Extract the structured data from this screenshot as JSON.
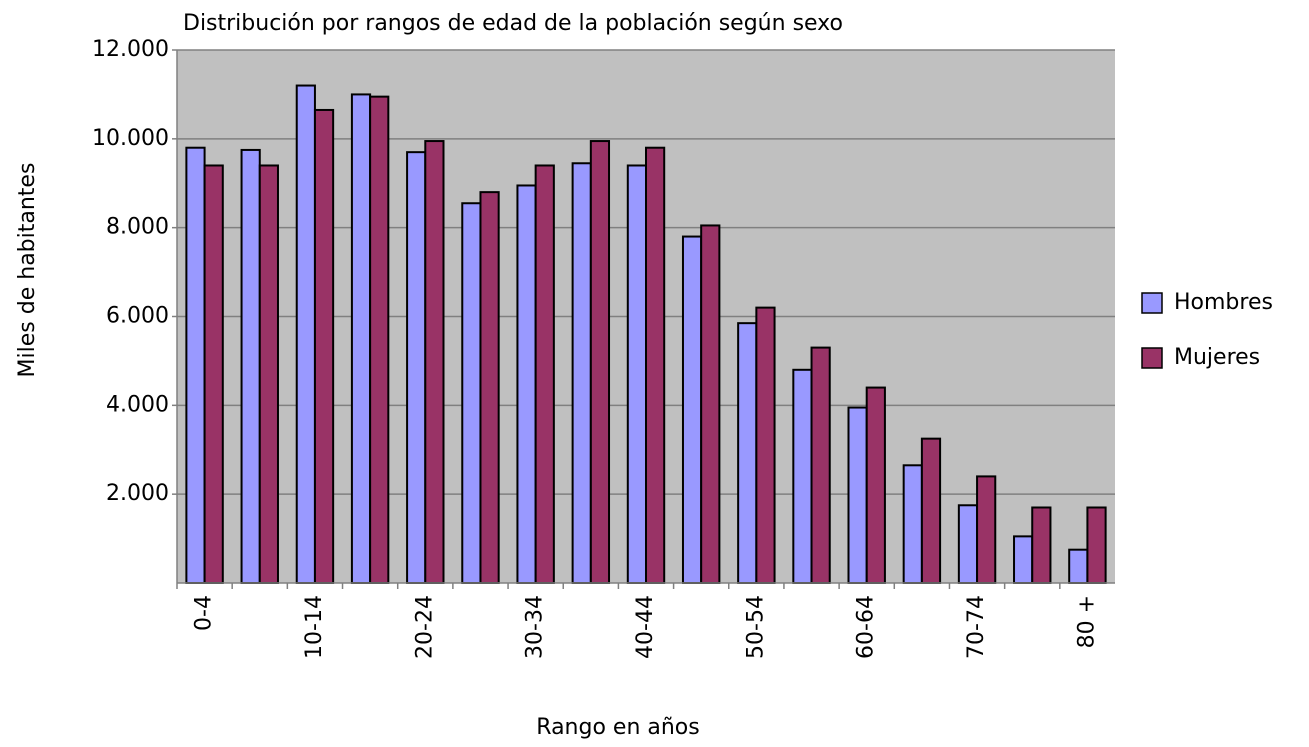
{
  "chart_data": {
    "type": "bar",
    "title": "Distribución por rangos de edad de la población según sexo",
    "x_label": "Rango en años",
    "y_label": "Miles de habitantes",
    "categories": [
      "0-4",
      null,
      "10-14",
      null,
      "20-24",
      null,
      "30-34",
      null,
      "40-44",
      null,
      "50-54",
      null,
      "60-64",
      null,
      "70-74",
      null,
      "80 +"
    ],
    "series": [
      {
        "name": "Hombres",
        "color": "#9999ff",
        "values": [
          9800,
          9750,
          11200,
          11000,
          9700,
          8550,
          8950,
          9450,
          9400,
          7800,
          5850,
          4800,
          3950,
          2650,
          1750,
          1050,
          750
        ]
      },
      {
        "name": "Mujeres",
        "color": "#993366",
        "values": [
          9400,
          9400,
          10650,
          10950,
          9950,
          8800,
          9400,
          9950,
          9800,
          8050,
          6200,
          5300,
          4400,
          3250,
          2400,
          1700,
          1700
        ]
      }
    ],
    "ylim": [
      0,
      12000
    ],
    "yticks": [
      {
        "value": 2000,
        "label": "2.000"
      },
      {
        "value": 4000,
        "label": "4.000"
      },
      {
        "value": 6000,
        "label": "6.000"
      },
      {
        "value": 8000,
        "label": "8.000"
      },
      {
        "value": 10000,
        "label": "10.000"
      },
      {
        "value": 12000,
        "label": "12.000"
      }
    ],
    "grid": true,
    "legend": "right",
    "plot_background": "#c0c0c0"
  }
}
